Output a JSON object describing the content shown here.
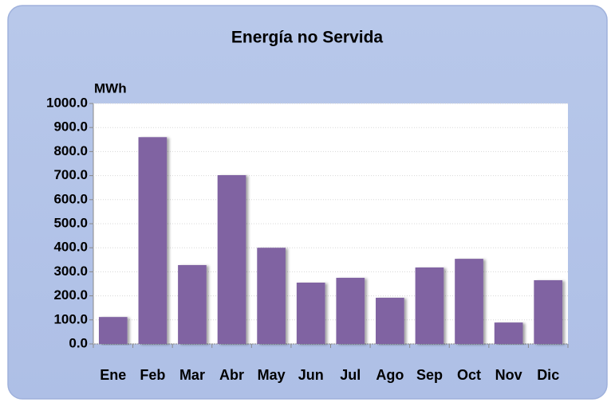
{
  "chart_data": {
    "type": "bar",
    "title": "Energía no Servida",
    "y_label": "MWh",
    "categories": [
      "Ene",
      "Feb",
      "Mar",
      "Abr",
      "May",
      "Jun",
      "Jul",
      "Ago",
      "Sep",
      "Oct",
      "Nov",
      "Dic"
    ],
    "values": [
      112,
      860,
      328,
      702,
      400,
      255,
      275,
      192,
      318,
      354,
      89,
      265
    ],
    "color": "#8064a2",
    "ylim": [
      0,
      1000
    ],
    "yticks": [
      {
        "value": 0,
        "label": "0.0"
      },
      {
        "value": 100,
        "label": "100.0"
      },
      {
        "value": 200,
        "label": "200.0"
      },
      {
        "value": 300,
        "label": "300.0"
      },
      {
        "value": 400,
        "label": "400.0"
      },
      {
        "value": 500,
        "label": "500.0"
      },
      {
        "value": 600,
        "label": "600.0"
      },
      {
        "value": 700,
        "label": "700.0"
      },
      {
        "value": 800,
        "label": "800.0"
      },
      {
        "value": 900,
        "label": "900.0"
      },
      {
        "value": 1000,
        "label": "1000.0"
      }
    ],
    "grid": true
  }
}
